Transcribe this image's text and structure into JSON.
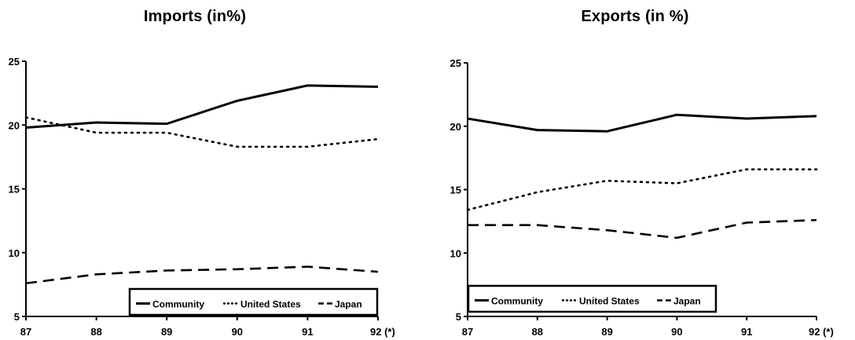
{
  "chart_data": [
    {
      "type": "line",
      "title": "Imports (in%)",
      "categories": [
        "87",
        "88",
        "89",
        "90",
        "91",
        "92 (*)"
      ],
      "x": [
        87,
        88,
        89,
        90,
        91,
        92
      ],
      "ylim": [
        5,
        25
      ],
      "yticks": [
        "5",
        "10",
        "15",
        "20",
        "25"
      ],
      "xticks": [
        "87",
        "88",
        "89",
        "90",
        "91",
        "92 (*)"
      ],
      "legend_position": "bottom-right",
      "series": [
        {
          "name": "Community",
          "style": "solid",
          "values": [
            19.8,
            20.2,
            20.1,
            21.9,
            23.1,
            23.0
          ]
        },
        {
          "name": "United States",
          "style": "dotted",
          "values": [
            20.6,
            19.4,
            19.4,
            18.3,
            18.3,
            18.9
          ]
        },
        {
          "name": "Japan",
          "style": "dashed",
          "values": [
            7.6,
            8.3,
            8.6,
            8.7,
            8.9,
            8.5
          ]
        }
      ]
    },
    {
      "type": "line",
      "title": "Exports (in %)",
      "categories": [
        "87",
        "88",
        "89",
        "90",
        "91",
        "92 (*)"
      ],
      "x": [
        87,
        88,
        89,
        90,
        91,
        92
      ],
      "ylim": [
        5,
        25
      ],
      "yticks": [
        "5",
        "10",
        "15",
        "20",
        "25"
      ],
      "xticks": [
        "87",
        "88",
        "89",
        "90",
        "91",
        "92 (*)"
      ],
      "legend_position": "bottom-left",
      "series": [
        {
          "name": "Community",
          "style": "solid",
          "values": [
            20.6,
            19.7,
            19.6,
            20.9,
            20.6,
            20.8
          ]
        },
        {
          "name": "United States",
          "style": "dotted",
          "values": [
            13.4,
            14.8,
            15.7,
            15.5,
            16.6,
            16.6
          ]
        },
        {
          "name": "Japan",
          "style": "dashed",
          "values": [
            12.2,
            12.2,
            11.8,
            11.2,
            12.4,
            12.6
          ]
        }
      ]
    }
  ]
}
